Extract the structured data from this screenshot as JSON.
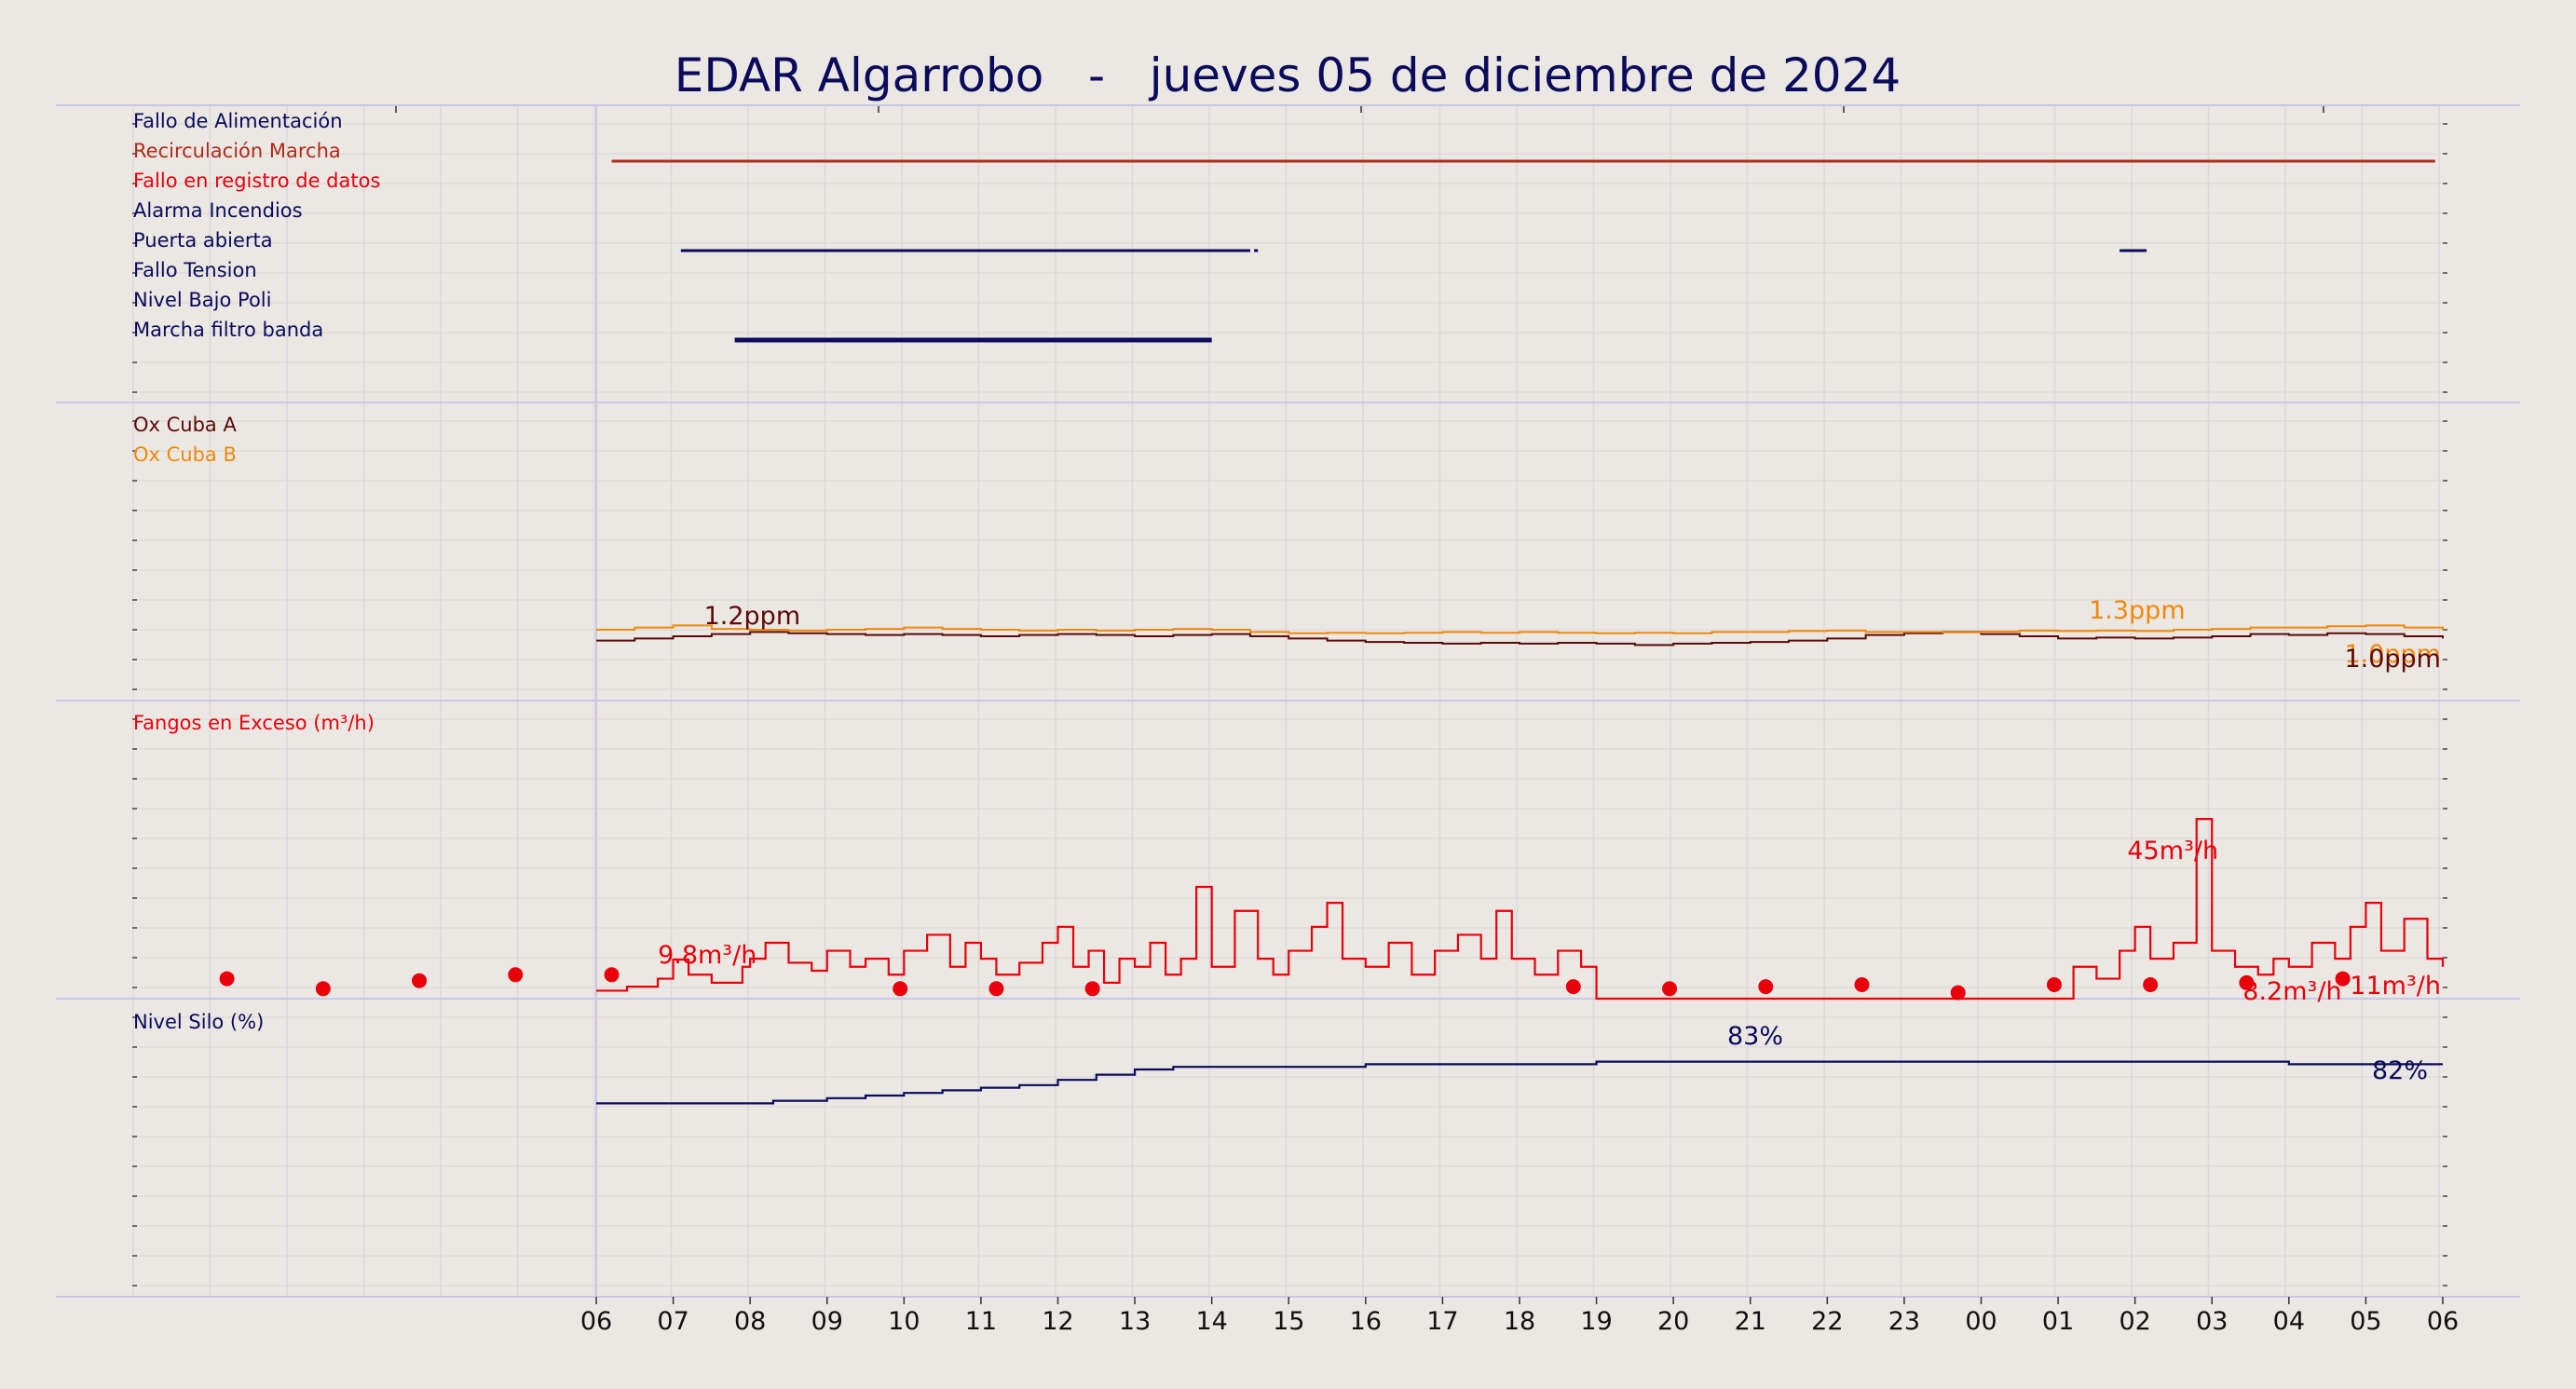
{
  "title": "EDAR Algarrobo   -   jueves 05 de diciembre de 2024",
  "x_axis": {
    "tick_labels": [
      "06",
      "07",
      "08",
      "09",
      "10",
      "11",
      "12",
      "13",
      "14",
      "15",
      "16",
      "17",
      "18",
      "19",
      "20",
      "21",
      "22",
      "23",
      "00",
      "01",
      "02",
      "03",
      "04",
      "05",
      "06"
    ]
  },
  "colors": {
    "background": "#ebe7e2",
    "navy": "#0b0b5c",
    "darkred": "#b02a1a",
    "red": "#e8000b",
    "maroon": "#5c0a0a",
    "orange": "#f0890a",
    "grid": "#dcd8dc",
    "separator": "#c8c8e6"
  },
  "panels": {
    "alarms": {
      "labels": [
        {
          "text": "Fallo de Alimentación",
          "color": "#0b0b5c"
        },
        {
          "text": "Recirculación Marcha",
          "color": "#b02a1a"
        },
        {
          "text": "Fallo en registro de datos",
          "color": "#e8000b"
        },
        {
          "text": "Alarma Incendios",
          "color": "#0b0b5c"
        },
        {
          "text": "Puerta abierta",
          "color": "#0b0b5c"
        },
        {
          "text": "Fallo Tension",
          "color": "#0b0b5c"
        },
        {
          "text": "Nivel Bajo Poli",
          "color": "#0b0b5c"
        },
        {
          "text": "Marcha filtro banda",
          "color": "#0b0b5c"
        }
      ]
    },
    "oxygen": {
      "labels": [
        {
          "text": "Ox Cuba A",
          "color": "#5c0a0a"
        },
        {
          "text": "Ox Cuba B",
          "color": "#f0890a"
        }
      ],
      "annotations": [
        "1.2ppm",
        "1.3ppm",
        "1.0ppm",
        "1.0ppm"
      ]
    },
    "sludge": {
      "label": "Fangos en Exceso (m³/h)",
      "annotations": [
        "9.8m³/h",
        "45m³/h",
        "8.2m³/h",
        "11m³/h"
      ]
    },
    "silo": {
      "label": "Nivel Silo (%)",
      "annotations": [
        "83%",
        "82%"
      ]
    }
  },
  "chart_data": [
    {
      "type": "timeline",
      "name": "alarms",
      "x_unit": "hours since 06:00 (05 dic 2024)",
      "series": [
        {
          "name": "Recirculación Marcha",
          "color": "#b02a1a",
          "intervals": [
            [
              0.2,
              23.9
            ]
          ]
        },
        {
          "name": "Puerta abierta",
          "color": "#0b0b5c",
          "intervals": [
            [
              1.1,
              8.5
            ],
            [
              8.55,
              8.6
            ],
            [
              19.8,
              20.15
            ]
          ]
        },
        {
          "name": "Marcha filtro banda",
          "color": "#0b0b5c",
          "intervals": [
            [
              1.8,
              8.0
            ]
          ]
        }
      ]
    },
    {
      "type": "line",
      "name": "oxygen",
      "unit": "ppm",
      "ylim": [
        0,
        6
      ],
      "series": [
        {
          "name": "Ox Cuba A",
          "color": "#5c0a0a",
          "x": [
            0,
            0.5,
            1,
            1.5,
            2,
            2.5,
            3,
            3.5,
            4,
            4.5,
            5,
            5.5,
            6,
            6.5,
            7,
            7.5,
            8,
            8.5,
            9,
            9.5,
            10,
            10.5,
            11,
            11.5,
            12,
            12.5,
            13,
            13.5,
            14,
            14.5,
            15,
            15.5,
            16,
            16.5,
            17,
            17.5,
            18,
            18.5,
            19,
            19.5,
            20,
            20.5,
            21,
            21.5,
            22,
            22.5,
            23,
            23.5,
            24
          ],
          "y": [
            0.95,
            1.0,
            1.05,
            1.1,
            1.15,
            1.12,
            1.1,
            1.08,
            1.1,
            1.08,
            1.05,
            1.08,
            1.1,
            1.08,
            1.05,
            1.08,
            1.1,
            1.05,
            1.0,
            0.95,
            0.92,
            0.9,
            0.88,
            0.9,
            0.88,
            0.9,
            0.88,
            0.85,
            0.88,
            0.9,
            0.92,
            0.95,
            1.0,
            1.08,
            1.12,
            1.15,
            1.1,
            1.05,
            1.0,
            1.02,
            1.0,
            1.02,
            1.05,
            1.1,
            1.08,
            1.12,
            1.1,
            1.05,
            1.0
          ]
        },
        {
          "name": "Ox Cuba B",
          "color": "#f0890a",
          "x": [
            0,
            0.5,
            1,
            1.5,
            2,
            2.5,
            3,
            3.5,
            4,
            4.5,
            5,
            5.5,
            6,
            6.5,
            7,
            7.5,
            8,
            8.5,
            9,
            9.5,
            10,
            10.5,
            11,
            11.5,
            12,
            12.5,
            13,
            13.5,
            14,
            14.5,
            15,
            15.5,
            16,
            16.5,
            17,
            17.5,
            18,
            18.5,
            19,
            19.5,
            20,
            20.5,
            21,
            21.5,
            22,
            22.5,
            23,
            23.5,
            24
          ],
          "y": [
            1.2,
            1.25,
            1.3,
            1.22,
            1.2,
            1.18,
            1.2,
            1.22,
            1.25,
            1.22,
            1.2,
            1.18,
            1.2,
            1.18,
            1.2,
            1.22,
            1.2,
            1.15,
            1.12,
            1.13,
            1.12,
            1.13,
            1.15,
            1.13,
            1.15,
            1.13,
            1.12,
            1.13,
            1.12,
            1.15,
            1.15,
            1.17,
            1.18,
            1.15,
            1.15,
            1.14,
            1.16,
            1.18,
            1.17,
            1.18,
            1.17,
            1.2,
            1.22,
            1.25,
            1.25,
            1.28,
            1.3,
            1.25,
            1.2
          ]
        }
      ]
    },
    {
      "type": "line",
      "name": "Fangos en Exceso",
      "unit": "m³/h",
      "ylim": [
        0,
        70
      ],
      "series": [
        {
          "name": "Fangos en Exceso",
          "color": "#e8000b",
          "style": "step",
          "x": [
            0,
            0.4,
            0.8,
            1.0,
            1.2,
            1.5,
            1.9,
            2.0,
            2.2,
            2.5,
            2.8,
            3.0,
            3.3,
            3.5,
            3.8,
            4.0,
            4.3,
            4.6,
            4.8,
            5.0,
            5.2,
            5.5,
            5.8,
            6.0,
            6.2,
            6.4,
            6.6,
            6.8,
            7.0,
            7.2,
            7.4,
            7.6,
            7.8,
            8.0,
            8.3,
            8.6,
            8.8,
            9.0,
            9.3,
            9.5,
            9.7,
            10.0,
            10.3,
            10.6,
            10.9,
            11.2,
            11.5,
            11.7,
            11.9,
            12.2,
            12.5,
            12.8,
            13.0,
            13.2,
            15.0,
            17.0,
            18.8,
            19.0,
            19.2,
            19.5,
            19.8,
            20.0,
            20.2,
            20.5,
            20.8,
            21.0,
            21.3,
            21.6,
            21.8,
            22.0,
            22.3,
            22.6,
            22.8,
            23.0,
            23.2,
            23.5,
            23.8,
            24.0
          ],
          "y": [
            2,
            3,
            5,
            9.8,
            6,
            4,
            8,
            10,
            14,
            9,
            7,
            12,
            8,
            10,
            6,
            12,
            16,
            8,
            14,
            10,
            6,
            9,
            14,
            18,
            8,
            12,
            4,
            10,
            8,
            14,
            6,
            10,
            28,
            8,
            22,
            10,
            6,
            12,
            18,
            24,
            10,
            8,
            14,
            6,
            12,
            16,
            10,
            22,
            10,
            6,
            12,
            8,
            0,
            0,
            0,
            0,
            0,
            0,
            8,
            5,
            12,
            18,
            10,
            14,
            45,
            12,
            8,
            6,
            10,
            8,
            14,
            10,
            18,
            24,
            12,
            20,
            10,
            8
          ]
        }
      ],
      "daily_points": {
        "x": [
          -4.8,
          -3.55,
          -2.3,
          -1.05,
          0.2,
          3.95,
          5.2,
          6.45,
          12.7,
          13.95,
          15.2,
          16.45,
          17.7,
          18.95,
          20.2,
          21.45,
          22.7
        ],
        "y": [
          5,
          2.5,
          4.5,
          6,
          6,
          2.5,
          2.5,
          2.5,
          3,
          2.5,
          3,
          3.5,
          1.5,
          3.5,
          3.5,
          4,
          5
        ]
      }
    },
    {
      "type": "line",
      "name": "Nivel Silo",
      "unit": "%",
      "ylim": [
        0,
        100
      ],
      "series": [
        {
          "name": "Nivel Silo (%)",
          "color": "#0b0b5c",
          "style": "step",
          "x": [
            0,
            1,
            2,
            2.3,
            3,
            3.5,
            4,
            4.5,
            5,
            5.5,
            6,
            6.5,
            7,
            7.5,
            8,
            8.5,
            9,
            10,
            11,
            12,
            13,
            14,
            15,
            16,
            17,
            18,
            19,
            20,
            21,
            22,
            23,
            24
          ],
          "y": [
            67,
            67,
            67,
            68,
            69,
            70,
            71,
            72,
            73,
            74,
            76,
            78,
            80,
            81,
            81,
            81,
            81,
            82,
            82,
            82,
            83,
            83,
            83,
            83,
            83,
            83,
            83,
            83,
            83,
            82,
            82,
            82
          ]
        }
      ]
    }
  ]
}
